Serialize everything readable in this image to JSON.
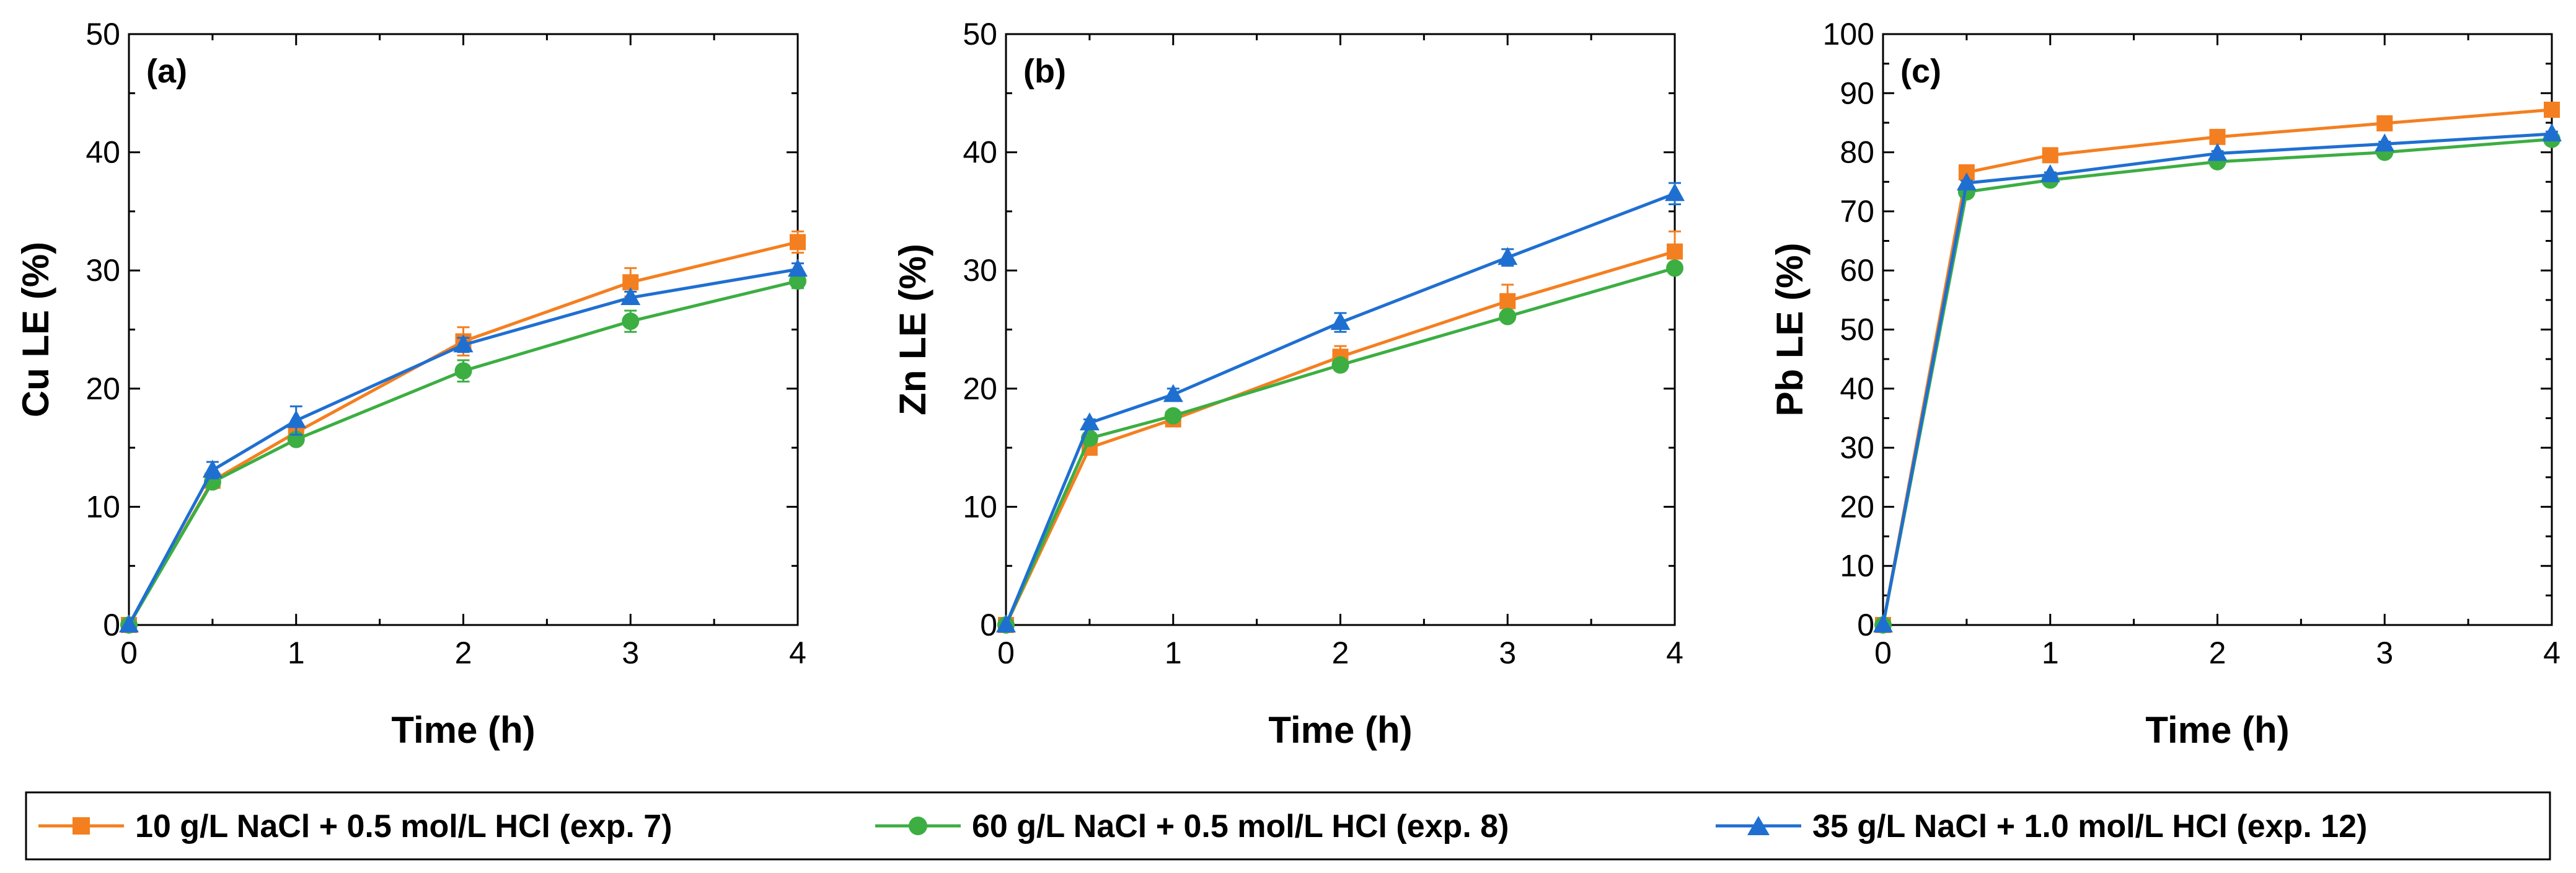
{
  "chart_data": [
    {
      "type": "line",
      "panel_label": "(a)",
      "xlabel": "Time (h)",
      "ylabel": "Cu LE (%)",
      "xlim": [
        0,
        4
      ],
      "ylim": [
        0,
        50
      ],
      "xticks": [
        0,
        1,
        2,
        3,
        4
      ],
      "yticks": [
        0,
        10,
        20,
        30,
        40,
        50
      ],
      "x": [
        0,
        0.5,
        1,
        2,
        3,
        4
      ],
      "series": [
        {
          "name": "10 g/L NaCl + 0.5 mol/L HCl (exp. 7)",
          "color": "#f47f20",
          "marker": "square",
          "values": [
            0,
            12.2,
            16.3,
            24.0,
            29.0,
            32.4
          ],
          "errors": [
            0,
            0.3,
            0.6,
            1.2,
            1.2,
            0.9
          ]
        },
        {
          "name": "60 g/L NaCl + 0.5 mol/L HCl (exp. 8)",
          "color": "#3cae42",
          "marker": "circle",
          "values": [
            0,
            12.1,
            15.7,
            21.5,
            25.7,
            29.1
          ],
          "errors": [
            0,
            0.3,
            0.4,
            0.9,
            0.9,
            0.6
          ]
        },
        {
          "name": "35 g/L NaCl + 1.0 mol/L HCl (exp. 12)",
          "color": "#1f6fd1",
          "marker": "triangle",
          "values": [
            0,
            13.1,
            17.3,
            23.7,
            27.7,
            30.1
          ],
          "errors": [
            0,
            0.7,
            1.2,
            0.6,
            0.5,
            0.5
          ]
        }
      ]
    },
    {
      "type": "line",
      "panel_label": "(b)",
      "xlabel": "Time (h)",
      "ylabel": "Zn LE (%)",
      "xlim": [
        0,
        4
      ],
      "ylim": [
        0,
        50
      ],
      "xticks": [
        0,
        1,
        2,
        3,
        4
      ],
      "yticks": [
        0,
        10,
        20,
        30,
        40,
        50
      ],
      "x": [
        0,
        0.5,
        1,
        2,
        3,
        4
      ],
      "series": [
        {
          "name": "10 g/L NaCl + 0.5 mol/L HCl (exp. 7)",
          "color": "#f47f20",
          "marker": "square",
          "values": [
            0,
            15.0,
            17.4,
            22.7,
            27.4,
            31.6
          ],
          "errors": [
            0,
            0.3,
            0.3,
            0.9,
            1.4,
            1.7
          ]
        },
        {
          "name": "60 g/L NaCl + 0.5 mol/L HCl (exp. 8)",
          "color": "#3cae42",
          "marker": "circle",
          "values": [
            0,
            15.8,
            17.7,
            22.0,
            26.1,
            30.2
          ],
          "errors": [
            0,
            0.3,
            0.3,
            0.4,
            0.4,
            0.4
          ]
        },
        {
          "name": "35 g/L NaCl + 1.0 mol/L HCl (exp. 12)",
          "color": "#1f6fd1",
          "marker": "triangle",
          "values": [
            0,
            17.1,
            19.5,
            25.6,
            31.1,
            36.5
          ],
          "errors": [
            0,
            0.3,
            0.5,
            0.8,
            0.7,
            0.9
          ]
        }
      ]
    },
    {
      "type": "line",
      "panel_label": "(c)",
      "xlabel": "Time (h)",
      "ylabel": "Pb LE (%)",
      "xlim": [
        0,
        4
      ],
      "ylim": [
        0,
        100
      ],
      "xticks": [
        0,
        1,
        2,
        3,
        4
      ],
      "yticks": [
        0,
        10,
        20,
        30,
        40,
        50,
        60,
        70,
        80,
        90,
        100
      ],
      "x": [
        0,
        0.5,
        1,
        2,
        3,
        4
      ],
      "series": [
        {
          "name": "10 g/L NaCl + 0.5 mol/L HCl (exp. 7)",
          "color": "#f47f20",
          "marker": "square",
          "values": [
            0,
            76.6,
            79.5,
            82.6,
            84.9,
            87.2
          ],
          "errors": [
            0,
            0.4,
            0.4,
            0.4,
            0.4,
            0.4
          ]
        },
        {
          "name": "60 g/L NaCl + 0.5 mol/L HCl (exp. 8)",
          "color": "#3cae42",
          "marker": "circle",
          "values": [
            0,
            73.3,
            75.3,
            78.4,
            80.0,
            82.2
          ],
          "errors": [
            0,
            0.5,
            0.4,
            0.4,
            0.4,
            0.4
          ]
        },
        {
          "name": "35 g/L NaCl + 1.0 mol/L HCl (exp. 12)",
          "color": "#1f6fd1",
          "marker": "triangle",
          "values": [
            0,
            74.8,
            76.2,
            79.8,
            81.4,
            83.1
          ],
          "errors": [
            0,
            0.4,
            0.4,
            0.4,
            0.4,
            0.4
          ]
        }
      ]
    }
  ],
  "legend": {
    "placement": "bottom",
    "entries": [
      {
        "label": "10 g/L NaCl + 0.5 mol/L HCl (exp. 7)",
        "color": "#f47f20",
        "marker": "square"
      },
      {
        "label": "60 g/L NaCl + 0.5 mol/L HCl (exp. 8)",
        "color": "#3cae42",
        "marker": "circle"
      },
      {
        "label": "35 g/L NaCl + 1.0 mol/L HCl (exp. 12)",
        "color": "#1f6fd1",
        "marker": "triangle"
      }
    ]
  }
}
